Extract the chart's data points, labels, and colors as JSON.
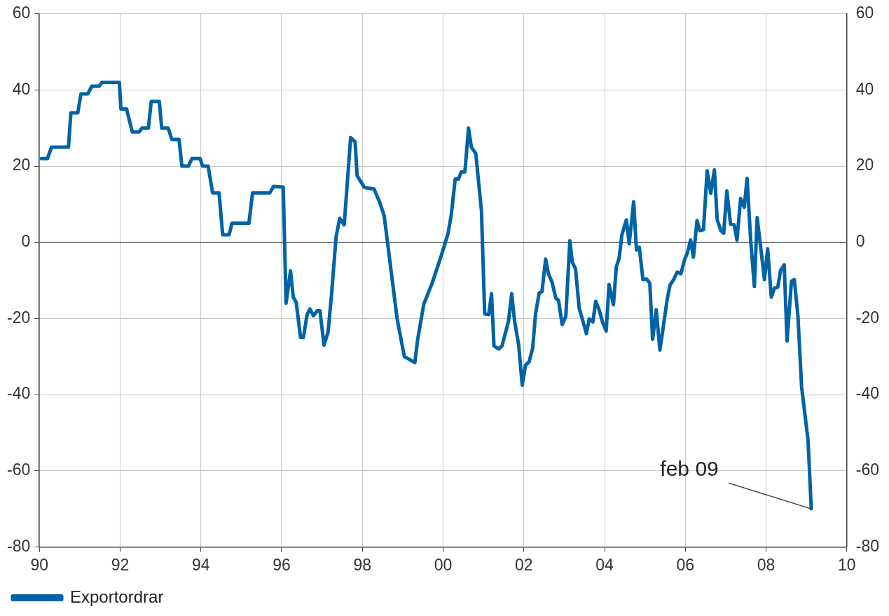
{
  "chart_data": {
    "type": "line",
    "series": [
      {
        "name": "Exportordrar",
        "color": "#0063a6",
        "x": [
          1990.05,
          1990.2,
          1990.3,
          1990.72,
          1990.78,
          1990.95,
          1991.03,
          1991.2,
          1991.3,
          1991.48,
          1991.55,
          1991.98,
          1992.02,
          1992.16,
          1992.3,
          1992.47,
          1992.54,
          1992.7,
          1992.77,
          1992.97,
          1993.03,
          1993.19,
          1993.28,
          1993.46,
          1993.53,
          1993.69,
          1993.78,
          1993.98,
          1994.04,
          1994.18,
          1994.29,
          1994.45,
          1994.54,
          1994.7,
          1994.77,
          1995.19,
          1995.28,
          1995.71,
          1995.8,
          1996.04,
          1996.11,
          1996.22,
          1996.29,
          1996.36,
          1996.47,
          1996.54,
          1996.63,
          1996.7,
          1996.79,
          1996.88,
          1996.95,
          1997.05,
          1997.15,
          1997.24,
          1997.35,
          1997.44,
          1997.55,
          1997.71,
          1997.82,
          1997.87,
          1998.05,
          1998.29,
          1998.43,
          1998.54,
          1998.7,
          1998.86,
          1999.04,
          1999.3,
          1999.37,
          1999.52,
          1999.73,
          1999.96,
          2000.12,
          2000.2,
          2000.3,
          2000.38,
          2000.45,
          2000.54,
          2000.63,
          2000.7,
          2000.81,
          2000.95,
          2001.03,
          2001.13,
          2001.2,
          2001.26,
          2001.38,
          2001.46,
          2001.62,
          2001.7,
          2001.77,
          2001.87,
          2001.96,
          2002.04,
          2002.13,
          2002.22,
          2002.29,
          2002.38,
          2002.45,
          2002.54,
          2002.61,
          2002.7,
          2002.79,
          2002.86,
          2002.95,
          2003.04,
          2003.14,
          2003.2,
          2003.28,
          2003.37,
          2003.55,
          2003.62,
          2003.71,
          2003.78,
          2003.87,
          2003.95,
          2004.04,
          2004.11,
          2004.22,
          2004.29,
          2004.36,
          2004.43,
          2004.54,
          2004.61,
          2004.72,
          2004.79,
          2004.86,
          2004.95,
          2005.04,
          2005.12,
          2005.19,
          2005.28,
          2005.37,
          2005.46,
          2005.55,
          2005.62,
          2005.71,
          2005.8,
          2005.89,
          2005.98,
          2006.05,
          2006.13,
          2006.2,
          2006.29,
          2006.36,
          2006.45,
          2006.54,
          2006.63,
          2006.72,
          2006.79,
          2006.88,
          2006.95,
          2007.03,
          2007.12,
          2007.21,
          2007.28,
          2007.37,
          2007.46,
          2007.53,
          2007.62,
          2007.71,
          2007.78,
          2007.89,
          2007.96,
          2008.04,
          2008.13,
          2008.21,
          2008.29,
          2008.36,
          2008.45,
          2008.52,
          2008.63,
          2008.7,
          2008.79,
          2008.88,
          2009.04,
          2009.12
        ],
        "values": [
          22,
          22,
          25,
          25,
          34,
          34,
          39,
          39,
          41,
          41,
          42,
          42,
          35,
          35,
          29,
          29,
          30,
          30,
          37,
          37,
          30,
          30,
          27,
          27,
          20,
          20,
          22,
          22,
          20,
          20,
          13,
          13,
          2,
          2,
          5,
          5,
          13,
          13,
          14.7,
          14.5,
          -16,
          -7.5,
          -14.5,
          -15.7,
          -25,
          -25,
          -19,
          -17.5,
          -19.3,
          -18,
          -18,
          -27,
          -23.6,
          -13.3,
          1.5,
          6.3,
          4.6,
          27.5,
          26.4,
          17.5,
          14.4,
          14,
          10.5,
          7,
          -6.5,
          -20,
          -30,
          -31.6,
          -25.5,
          -16.3,
          -10.7,
          -3.3,
          2.2,
          7,
          16.6,
          16.6,
          18.5,
          18.5,
          30,
          25,
          23.3,
          8.3,
          -18.8,
          -19,
          -13.5,
          -27.2,
          -28,
          -27.2,
          -20.7,
          -13.5,
          -20.7,
          -26.8,
          -37.5,
          -32.3,
          -31.4,
          -27.7,
          -18.8,
          -13.3,
          -12.9,
          -4.4,
          -8.3,
          -10.5,
          -14.6,
          -15.3,
          -21.6,
          -19.4,
          0.4,
          -5.2,
          -7,
          -17.2,
          -24,
          -20.1,
          -20.9,
          -15.5,
          -17.9,
          -21,
          -23.3,
          -11.1,
          -16.4,
          -6.5,
          -4.2,
          2,
          5.9,
          -0.4,
          10.7,
          -2,
          -1.3,
          -9.8,
          -9.6,
          -10.7,
          -25.5,
          -17.7,
          -28.3,
          -21.8,
          -15,
          -11.3,
          -9.8,
          -7.8,
          -8.3,
          -4.6,
          -2.8,
          0.6,
          -3.9,
          5.7,
          3.1,
          3.3,
          18.8,
          12.9,
          19,
          5.9,
          3.1,
          2.4,
          13.5,
          4.8,
          4.6,
          0.6,
          11.5,
          9.2,
          16.8,
          0.4,
          -11.6,
          6.5,
          -3.4,
          -9.8,
          -1.7,
          -14.4,
          -12,
          -11.8,
          -7.4,
          -5.9,
          -25.9,
          -10.2,
          -9.8,
          -19.4,
          -37.9,
          -52,
          -70
        ]
      }
    ],
    "xlim": [
      1990,
      2010
    ],
    "xticks": [
      {
        "value": 1990,
        "label": "90"
      },
      {
        "value": 1992,
        "label": "92"
      },
      {
        "value": 1994,
        "label": "94"
      },
      {
        "value": 1996,
        "label": "96"
      },
      {
        "value": 1998,
        "label": "98"
      },
      {
        "value": 2000,
        "label": "00"
      },
      {
        "value": 2002,
        "label": "02"
      },
      {
        "value": 2004,
        "label": "04"
      },
      {
        "value": 2006,
        "label": "06"
      },
      {
        "value": 2008,
        "label": "08"
      },
      {
        "value": 2010,
        "label": "10"
      }
    ],
    "ylim": [
      -80,
      60
    ],
    "yticks": [
      -80,
      -60,
      -40,
      -20,
      0,
      20,
      40,
      60
    ],
    "y2lim": [
      -80,
      60
    ],
    "y2ticks": [
      -80,
      -60,
      -40,
      -20,
      0,
      20,
      40,
      60
    ],
    "annotations": [
      {
        "text": "feb 09",
        "x": 2009.12,
        "y": -70
      }
    ],
    "grid": true,
    "legend": "bottom left",
    "marker": "none",
    "line_style": "solid"
  }
}
